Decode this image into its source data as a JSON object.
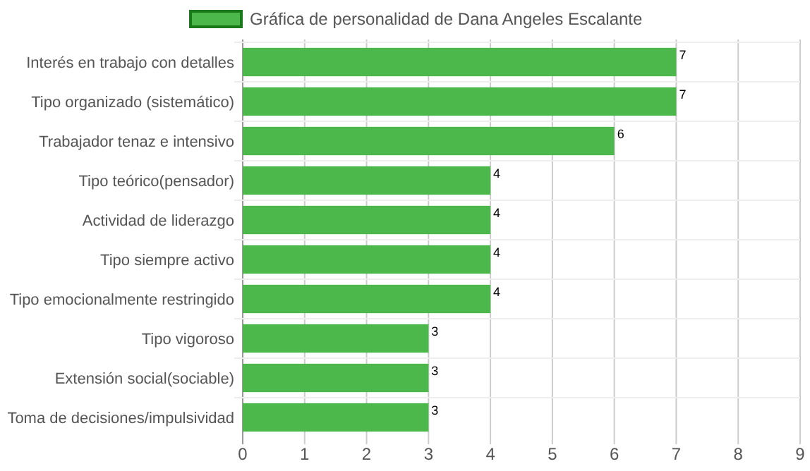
{
  "chart_data": {
    "type": "bar",
    "orientation": "horizontal",
    "categories": [
      "Interés en trabajo con detalles",
      "Tipo organizado (sistemático)",
      "Trabajador tenaz e intensivo",
      "Tipo teórico(pensador)",
      "Actividad de liderazgo",
      "Tipo siempre activo",
      "Tipo emocionalmente restringido",
      "Tipo vigoroso",
      "Extensión social(sociable)",
      "Toma de decisiones/impulsividad"
    ],
    "series": [
      {
        "name": "Gráfica de personalidad de Dana Angeles Escalante",
        "color": "#4cb84c",
        "values": [
          7,
          7,
          6,
          4,
          4,
          4,
          4,
          3,
          3,
          3
        ]
      }
    ],
    "xlim": [
      0,
      9
    ],
    "xticks": [
      0,
      1,
      2,
      3,
      4,
      5,
      6,
      7,
      8,
      9
    ],
    "grid": "x",
    "legend": "top",
    "data_labels": true
  }
}
